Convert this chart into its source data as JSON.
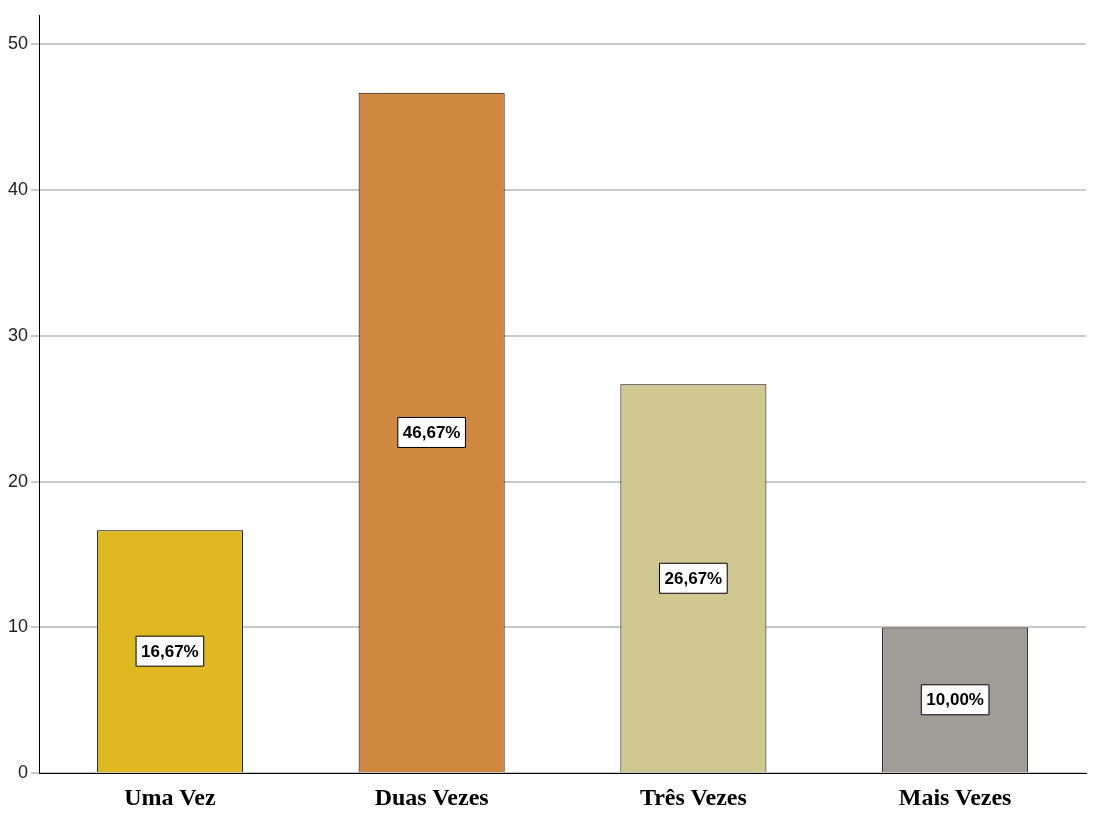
{
  "chart_data": {
    "type": "bar",
    "categories": [
      "Uma Vez",
      "Duas Vezes",
      "Três Vezes",
      "Mais Vezes"
    ],
    "values": [
      16.67,
      46.67,
      26.67,
      10.0
    ],
    "colors": [
      "#e0b820",
      "#d08840",
      "#d0c890",
      "#a09c98"
    ],
    "value_labels": [
      "16,67%",
      "46,67%",
      "26,67%",
      "10,00%"
    ],
    "ylim": [
      0,
      52
    ],
    "yticks": [
      0,
      10,
      20,
      30,
      40,
      50
    ],
    "grid": "y",
    "legend": false
  }
}
